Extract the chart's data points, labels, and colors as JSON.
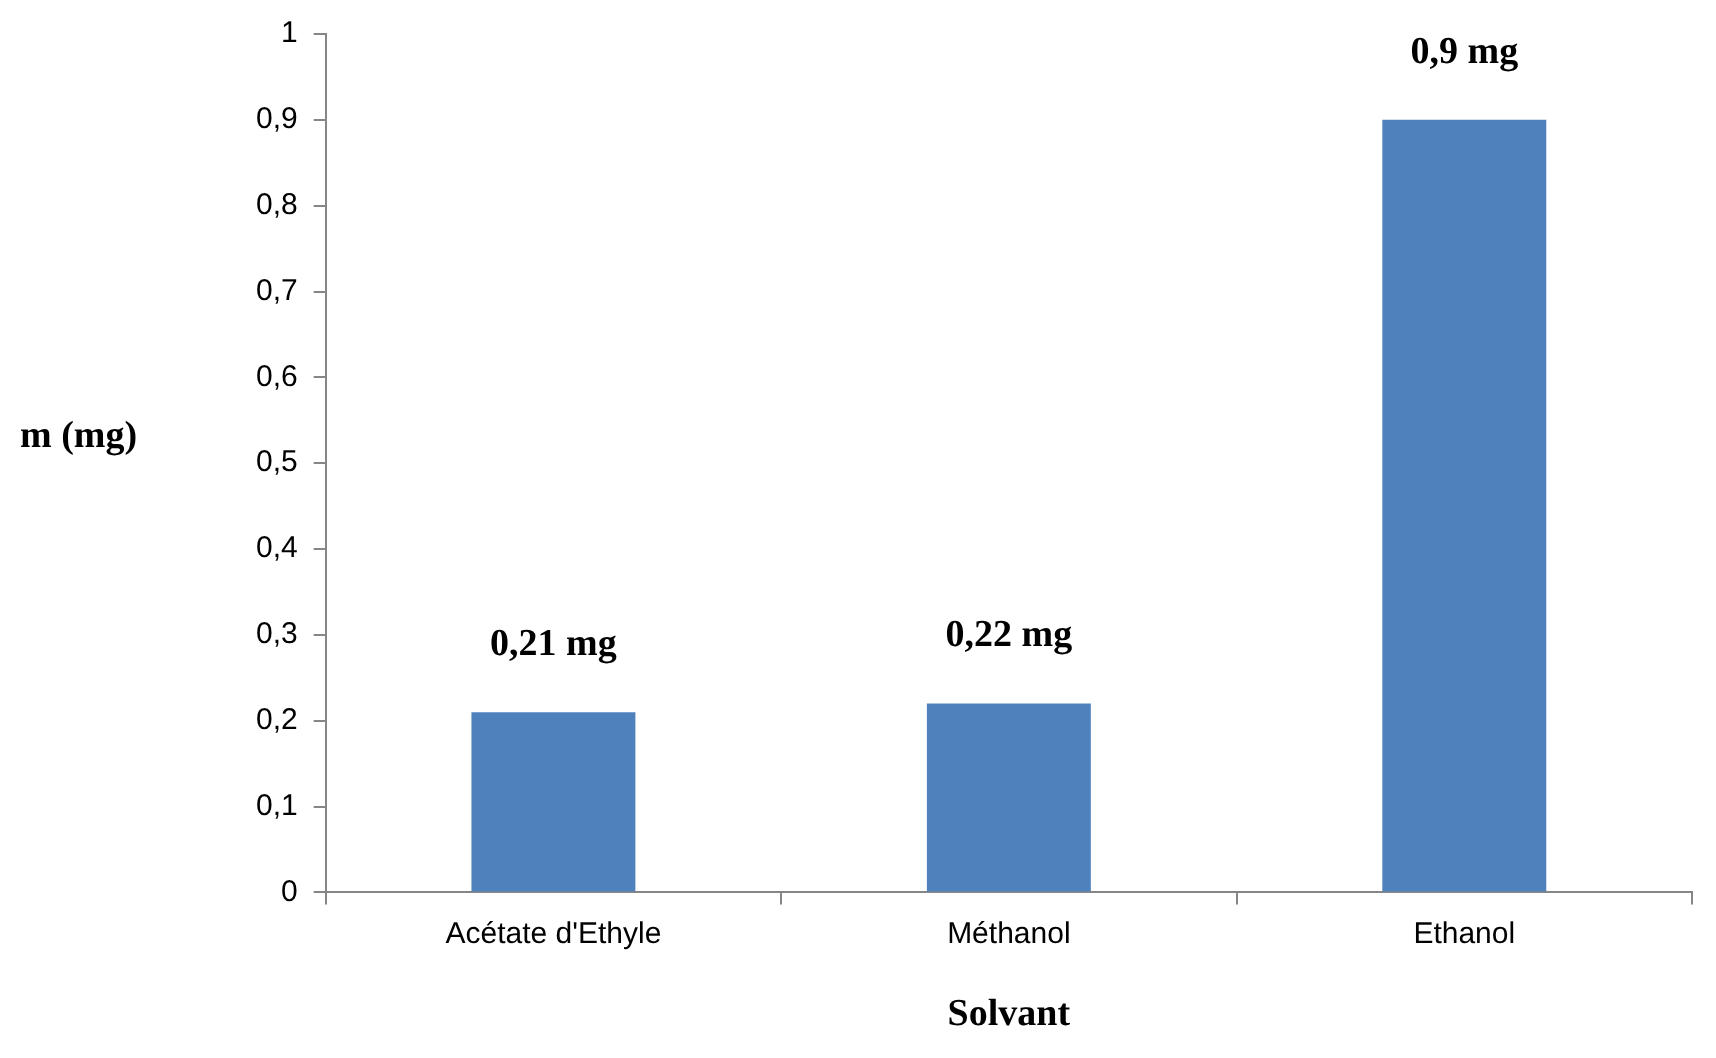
{
  "chart_data": {
    "type": "bar",
    "xlabel": "Solvant",
    "ylabel": "m (mg)",
    "categories": [
      "Acétate d'Ethyle",
      "Méthanol",
      "Ethanol"
    ],
    "values": [
      0.21,
      0.22,
      0.9
    ],
    "color": "#4f81bd",
    "value_labels": [
      "0,21 mg",
      "0,22 mg",
      "0,9 mg"
    ],
    "ylim": [
      0,
      1
    ],
    "yticks": [
      0,
      {
        "value": 0.1,
        "label": "0,1"
      },
      {
        "value": 0.2,
        "label": "0,2"
      },
      {
        "value": 0.3,
        "label": "0,3"
      },
      {
        "value": 0.4,
        "label": "0,4"
      },
      {
        "value": 0.5,
        "label": "0,5"
      },
      {
        "value": 0.6,
        "label": "0,6"
      },
      {
        "value": 0.7,
        "label": "0,7"
      },
      {
        "value": 0.8,
        "label": "0,8"
      },
      {
        "value": 0.9,
        "label": "0,9"
      },
      1
    ],
    "grid": false,
    "legend": false
  }
}
